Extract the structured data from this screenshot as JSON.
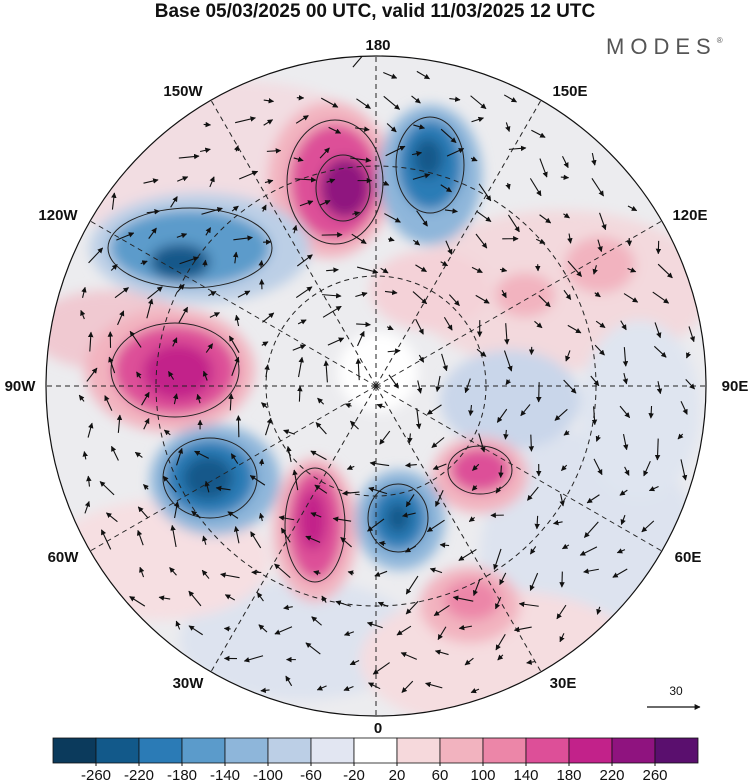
{
  "title": "Base 05/03/2025 00 UTC, valid 11/03/2025 12 UTC",
  "brand": "MODES",
  "brand_mark": "®",
  "longitude_labels": {
    "top": "180",
    "bottom": "0",
    "left": "90W",
    "right": "90E",
    "upper_left": "150W",
    "upper_right": "150E",
    "mid_upper_left": "120W",
    "mid_upper_right": "120E",
    "mid_lower_left": "60W",
    "mid_lower_right": "60E",
    "lower_left": "30W",
    "lower_right": "30E"
  },
  "reference_vector": {
    "value": "30"
  },
  "colorbar": {
    "ticks": [
      "-260",
      "-220",
      "-180",
      "-140",
      "-100",
      "-60",
      "-20",
      "20",
      "60",
      "100",
      "140",
      "180",
      "220",
      "260"
    ],
    "colors": [
      "#0b3a5c",
      "#12598a",
      "#2b7bb6",
      "#5b9bcb",
      "#8eb6da",
      "#bccfe6",
      "#e2e6f2",
      "#ffffff",
      "#f6d9dc",
      "#f2b3bf",
      "#ec86a8",
      "#dd4f98",
      "#c2228a",
      "#8f137f",
      "#5a0f6e"
    ]
  },
  "map_icons": {
    "anomaly_blobs": "shaded-anomaly",
    "vectors": "wind-arrow-icon",
    "graticule": "dashed-graticule"
  }
}
